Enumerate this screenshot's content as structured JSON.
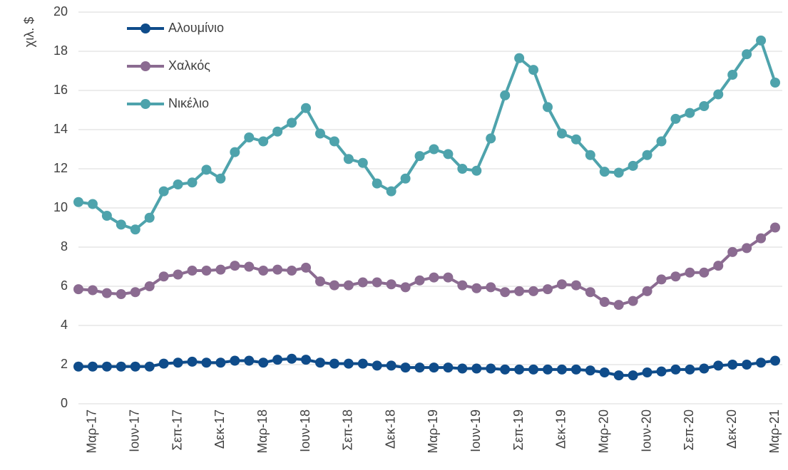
{
  "chart_data": {
    "type": "line",
    "y_label": "χιλ. $",
    "categories": [
      null,
      "Μαρ-17",
      null,
      null,
      "Ιουν-17",
      null,
      null,
      "Σεπ-17",
      null,
      null,
      "Δεκ-17",
      null,
      null,
      "Μαρ-18",
      null,
      null,
      "Ιουν-18",
      null,
      null,
      "Σεπ-18",
      null,
      null,
      "Δεκ-18",
      null,
      null,
      "Μαρ-19",
      null,
      null,
      "Ιουν-19",
      null,
      null,
      "Σεπ-19",
      null,
      null,
      "Δεκ-19",
      null,
      null,
      "Μαρ-20",
      null,
      null,
      "Ιουν-20",
      null,
      null,
      "Σεπ-20",
      null,
      null,
      "Δεκ-20",
      null,
      null,
      "Μαρ-21"
    ],
    "series": [
      {
        "name": "Αλουμίνιο",
        "color": "#0f4c8a",
        "values": [
          1.9,
          1.9,
          1.9,
          1.9,
          1.9,
          1.9,
          2.05,
          2.1,
          2.15,
          2.1,
          2.1,
          2.2,
          2.2,
          2.1,
          2.25,
          2.3,
          2.25,
          2.1,
          2.05,
          2.05,
          2.05,
          1.95,
          1.95,
          1.85,
          1.85,
          1.85,
          1.85,
          1.8,
          1.8,
          1.8,
          1.75,
          1.75,
          1.75,
          1.75,
          1.75,
          1.75,
          1.7,
          1.6,
          1.45,
          1.45,
          1.6,
          1.65,
          1.75,
          1.75,
          1.8,
          1.95,
          2.0,
          2.0,
          2.1,
          2.2
        ]
      },
      {
        "name": "Χαλκός",
        "color": "#8b6b91",
        "values": [
          5.85,
          5.8,
          5.65,
          5.6,
          5.7,
          6.0,
          6.5,
          6.6,
          6.8,
          6.8,
          6.85,
          7.05,
          7.0,
          6.8,
          6.85,
          6.8,
          6.95,
          6.25,
          6.05,
          6.05,
          6.2,
          6.2,
          6.1,
          5.95,
          6.3,
          6.45,
          6.45,
          6.05,
          5.9,
          5.95,
          5.7,
          5.75,
          5.75,
          5.85,
          6.1,
          6.05,
          5.7,
          5.2,
          5.05,
          5.25,
          5.75,
          6.35,
          6.5,
          6.7,
          6.7,
          7.05,
          7.75,
          7.95,
          8.45,
          9.0
        ]
      },
      {
        "name": "Νικέλιο",
        "color": "#4ea3ac",
        "values": [
          10.3,
          10.2,
          9.6,
          9.15,
          8.9,
          9.5,
          10.85,
          11.2,
          11.3,
          11.95,
          11.5,
          12.85,
          13.6,
          13.4,
          13.9,
          14.35,
          15.1,
          13.8,
          13.4,
          12.5,
          12.3,
          11.25,
          10.85,
          11.5,
          12.65,
          13.0,
          12.75,
          12.0,
          11.9,
          13.55,
          15.75,
          17.65,
          17.05,
          15.15,
          13.8,
          13.5,
          12.7,
          11.85,
          11.8,
          12.15,
          12.7,
          13.4,
          14.55,
          14.85,
          15.2,
          15.8,
          16.8,
          17.85,
          18.55,
          16.4
        ]
      }
    ],
    "ylim": [
      0,
      20
    ],
    "yticks": [
      0,
      2,
      4,
      6,
      8,
      10,
      12,
      14,
      16,
      18,
      20
    ],
    "grid": true,
    "legend": "upper-left"
  }
}
